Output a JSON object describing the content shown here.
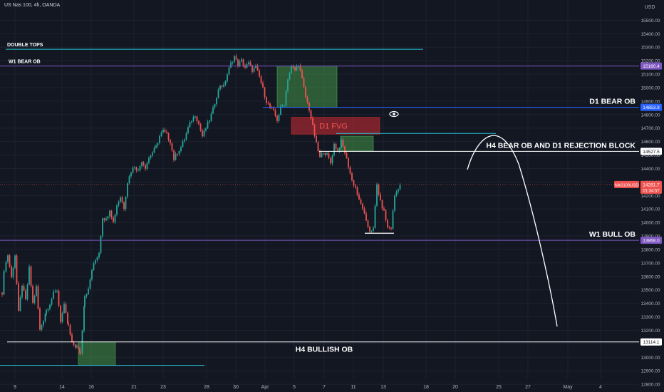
{
  "header": {
    "symbol_text": "US Nas 100, 4h, OANDA"
  },
  "axis": {
    "currency": "USD",
    "ticks": [
      15500,
      15400,
      15300,
      15200,
      15100,
      15000,
      14900,
      14800,
      14700,
      14600,
      14500,
      14400,
      14300,
      14200,
      14100,
      14000,
      13900,
      13800,
      13700,
      13600,
      13500,
      13400,
      13300,
      13200,
      13100,
      13000,
      12900,
      12800
    ]
  },
  "chart_data": {
    "type": "candlestick",
    "symbol": "US Nas 100",
    "timeframe": "4h",
    "broker": "OANDA",
    "x_ticks": [
      "9",
      "14",
      "16",
      "21",
      "23",
      "28",
      "30",
      "Apr",
      "5",
      "7",
      "11",
      "13",
      "18",
      "20",
      "25",
      "27",
      "May",
      "4"
    ],
    "ylim": [
      12750,
      15550
    ],
    "price_levels": [
      {
        "label": "DOUBLE TOPS",
        "price": 15285,
        "color": "#26c6da"
      },
      {
        "label": "W1 BEAR OB",
        "price": 15160.4,
        "tag": "15160.4",
        "color": "#7e57c2"
      },
      {
        "label": "D1 BEAR OB",
        "price": 14853.9,
        "tag": "14853.9",
        "color": "#2962ff"
      },
      {
        "label": "H4 BEAR OB   AND   D1 REJECTION BLOCK",
        "price": 14527.5,
        "tag": "14527.5",
        "color": "#ffffff"
      },
      {
        "label": "W1 BULL OB",
        "price": 13868.0,
        "tag": "13868.0",
        "color": "#7e57c2"
      },
      {
        "label": "H4 BULLISH OB",
        "price": 13114.1,
        "tag": "13114.1",
        "color": "#ffffff"
      }
    ],
    "zones": [
      {
        "label": "",
        "type": "bear-ob",
        "top": 15160,
        "bottom": 14855
      },
      {
        "label": "D1 FVG",
        "type": "fvg",
        "top": 14780,
        "bottom": 14655
      },
      {
        "label": "",
        "type": "rejection",
        "top": 14640,
        "bottom": 14530
      },
      {
        "label": "",
        "type": "bull-ob",
        "top": 13114,
        "bottom": 12940
      }
    ],
    "current_price": {
      "symbol": "NAS100USD",
      "price": 14281.7,
      "countdown": "01:34:57"
    }
  }
}
